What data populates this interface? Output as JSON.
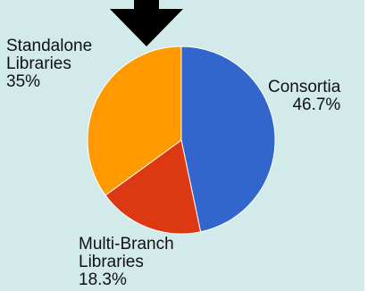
{
  "chart_data": {
    "type": "pie",
    "start_angle_deg": 0,
    "direction": "clockwise",
    "slices": [
      {
        "lines": [
          "Consortia",
          "46.7%"
        ],
        "value": 46.7,
        "color": "#3366cc"
      },
      {
        "lines": [
          "Multi-Branch",
          "Libraries",
          "18.3%"
        ],
        "value": 18.3,
        "color": "#dc3912"
      },
      {
        "lines": [
          "Standalone",
          "Libraries",
          "35%"
        ],
        "value": 35,
        "color": "#ff9900"
      }
    ]
  },
  "colors": {
    "background": "#d2eaea",
    "arrow": "#000000"
  },
  "icons": {
    "pointer": "down-arrow-icon"
  }
}
